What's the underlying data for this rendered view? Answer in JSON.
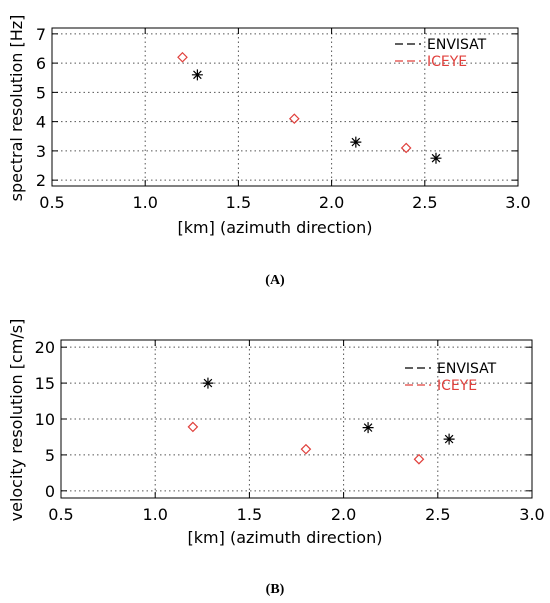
{
  "chart_data": [
    {
      "type": "scatter",
      "panel_label": "(A)",
      "xlabel": "[km] (azimuth direction)",
      "ylabel": "spectral resolution [Hz]",
      "xlim": [
        0.5,
        3.0
      ],
      "ylim": [
        1.8,
        7.2
      ],
      "xticks": [
        0.5,
        1.0,
        1.5,
        2.0,
        2.5,
        3.0
      ],
      "xtick_labels": [
        "0.5",
        "1.0",
        "1.5",
        "2.0",
        "2.5",
        "3.0"
      ],
      "yticks": [
        2,
        3,
        4,
        5,
        6,
        7
      ],
      "ytick_labels": [
        "2",
        "3",
        "4",
        "5",
        "6",
        "7"
      ],
      "grid": true,
      "legend_position": "top-right",
      "series": [
        {
          "name": "ENVISAT",
          "marker": "asterisk",
          "color": "#000000",
          "x": [
            1.28,
            2.13,
            2.56
          ],
          "y": [
            5.6,
            3.3,
            2.75
          ]
        },
        {
          "name": "ICEYE",
          "marker": "diamond",
          "color": "#e0403c",
          "x": [
            1.2,
            1.8,
            2.4
          ],
          "y": [
            6.2,
            4.1,
            3.1
          ]
        }
      ]
    },
    {
      "type": "scatter",
      "panel_label": "(B)",
      "xlabel": "[km] (azimuth direction)",
      "ylabel": "velocity resolution [cm/s]",
      "xlim": [
        0.5,
        3.0
      ],
      "ylim": [
        -1,
        21
      ],
      "xticks": [
        0.5,
        1.0,
        1.5,
        2.0,
        2.5,
        3.0
      ],
      "xtick_labels": [
        "0.5",
        "1.0",
        "1.5",
        "2.0",
        "2.5",
        "3.0"
      ],
      "yticks": [
        0,
        5,
        10,
        15,
        20
      ],
      "ytick_labels": [
        "0",
        "5",
        "10",
        "15",
        "20"
      ],
      "grid": true,
      "legend_position": "top-right",
      "series": [
        {
          "name": "ENVISAT",
          "marker": "asterisk",
          "color": "#000000",
          "x": [
            1.28,
            2.13,
            2.56
          ],
          "y": [
            15.0,
            8.8,
            7.2
          ]
        },
        {
          "name": "ICEYE",
          "marker": "diamond",
          "color": "#e0403c",
          "x": [
            1.2,
            1.8,
            2.4
          ],
          "y": [
            8.9,
            5.8,
            4.4
          ]
        }
      ]
    }
  ]
}
